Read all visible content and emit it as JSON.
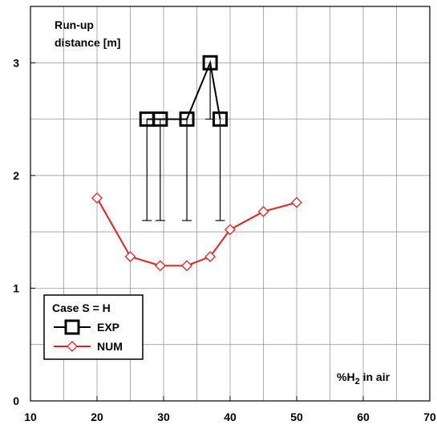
{
  "chart_data": {
    "type": "line",
    "ylabel": [
      "Run-up",
      "distance [m]"
    ],
    "xlabel": [
      "%H",
      "2",
      " in air"
    ],
    "legend_title": "Case S = H",
    "xlim": [
      10,
      70
    ],
    "xticks": [
      10,
      20,
      30,
      40,
      50,
      60,
      70
    ],
    "xgrid": [
      15,
      20,
      25,
      30,
      35,
      40,
      45,
      50,
      55,
      60,
      65
    ],
    "ylim": [
      0,
      3.5
    ],
    "yticks": [
      0,
      1,
      2,
      3
    ],
    "ygrid": [
      0.5,
      1,
      1.5,
      2,
      2.5,
      3
    ],
    "series": [
      {
        "name": "EXP",
        "color": "#000000",
        "marker": "square",
        "x": [
          27.5,
          29.5,
          33.5,
          37,
          38.5
        ],
        "values": [
          2.5,
          2.5,
          2.5,
          3.0,
          2.5
        ],
        "lower": [
          1.6,
          1.6,
          1.6,
          2.5,
          1.6
        ]
      },
      {
        "name": "NUM",
        "color": "#e8201c",
        "marker": "diamond",
        "x": [
          20,
          25,
          29.5,
          33.5,
          37,
          40,
          45,
          50
        ],
        "values": [
          1.8,
          1.28,
          1.2,
          1.2,
          1.28,
          1.52,
          1.68,
          1.76
        ]
      }
    ]
  }
}
